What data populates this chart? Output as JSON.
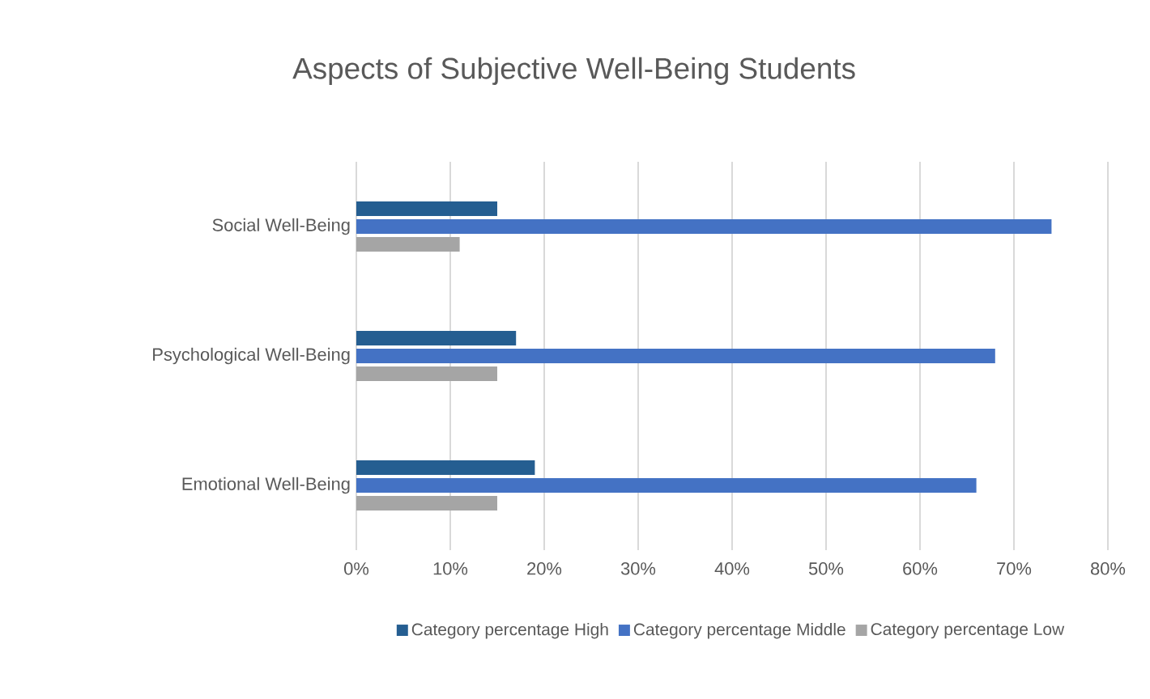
{
  "chart_data": {
    "type": "bar",
    "orientation": "horizontal",
    "title": "Aspects of Subjective Well-Being Students",
    "categories": [
      "Social Well-Being",
      "Psychological Well-Being",
      "Emotional Well-Being"
    ],
    "series": [
      {
        "name": "Category percentage High",
        "color": "#255e91",
        "values": [
          15,
          17,
          19
        ]
      },
      {
        "name": "Category percentage Middle",
        "color": "#4472c4",
        "values": [
          74,
          68,
          66
        ]
      },
      {
        "name": "Category percentage Low",
        "color": "#a5a5a5",
        "values": [
          11,
          15,
          15
        ]
      }
    ],
    "xlim": [
      0,
      80
    ],
    "xticks": [
      {
        "value": 0,
        "label": "0%"
      },
      {
        "value": 10,
        "label": "10%"
      },
      {
        "value": 20,
        "label": "20%"
      },
      {
        "value": 30,
        "label": "30%"
      },
      {
        "value": 40,
        "label": "40%"
      },
      {
        "value": 50,
        "label": "50%"
      },
      {
        "value": 60,
        "label": "60%"
      },
      {
        "value": 70,
        "label": "70%"
      },
      {
        "value": 80,
        "label": "80%"
      }
    ],
    "grid": "x",
    "legend": "bottom"
  }
}
